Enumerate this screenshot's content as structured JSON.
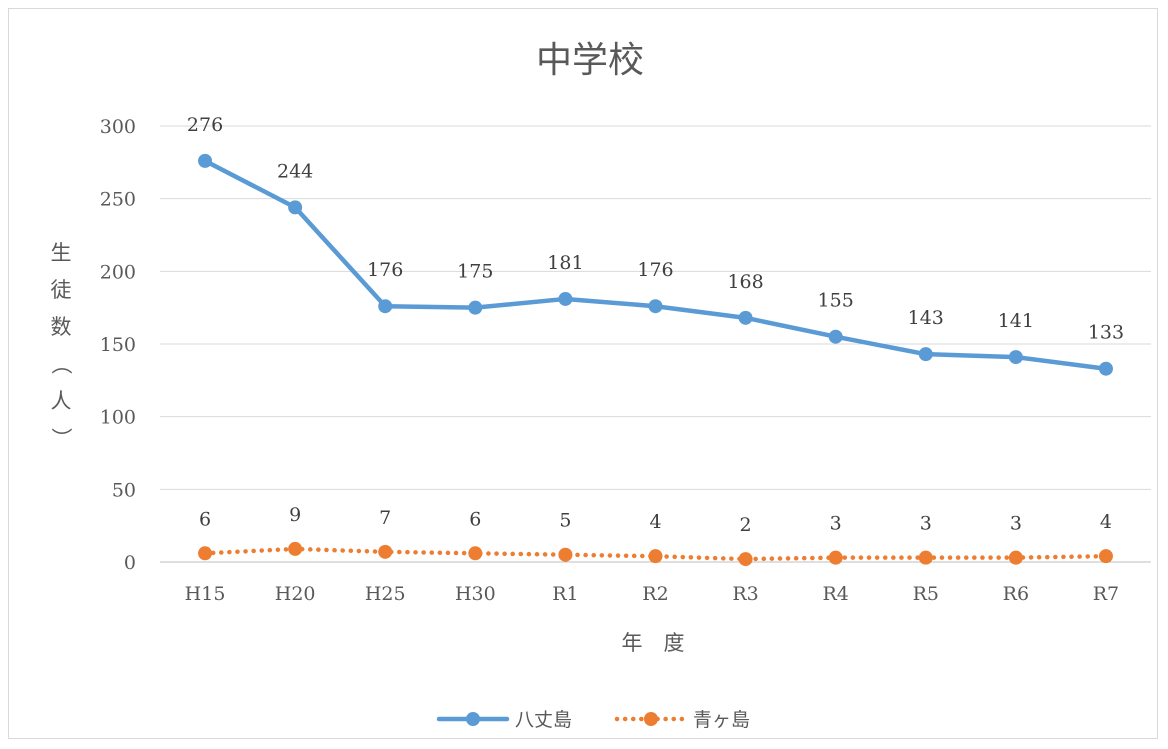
{
  "chart_data": {
    "type": "line",
    "title": "中学校",
    "xlabel": "年　度",
    "ylabel": "生徒数（人）",
    "categories": [
      "H15",
      "H20",
      "H25",
      "H30",
      "R1",
      "R2",
      "R3",
      "R4",
      "R5",
      "R6",
      "R7"
    ],
    "ylim": [
      0,
      300
    ],
    "yticks": [
      0,
      50,
      100,
      150,
      200,
      250,
      300
    ],
    "grid": true,
    "legend_position": "bottom",
    "series": [
      {
        "name": "八丈島",
        "values": [
          276,
          244,
          176,
          175,
          181,
          176,
          168,
          155,
          143,
          141,
          133
        ],
        "color": "#5b9bd5",
        "style": "solid"
      },
      {
        "name": "青ヶ島",
        "values": [
          6,
          9,
          7,
          6,
          5,
          4,
          2,
          3,
          3,
          3,
          4
        ],
        "color": "#ed7d31",
        "style": "dotted"
      }
    ]
  }
}
